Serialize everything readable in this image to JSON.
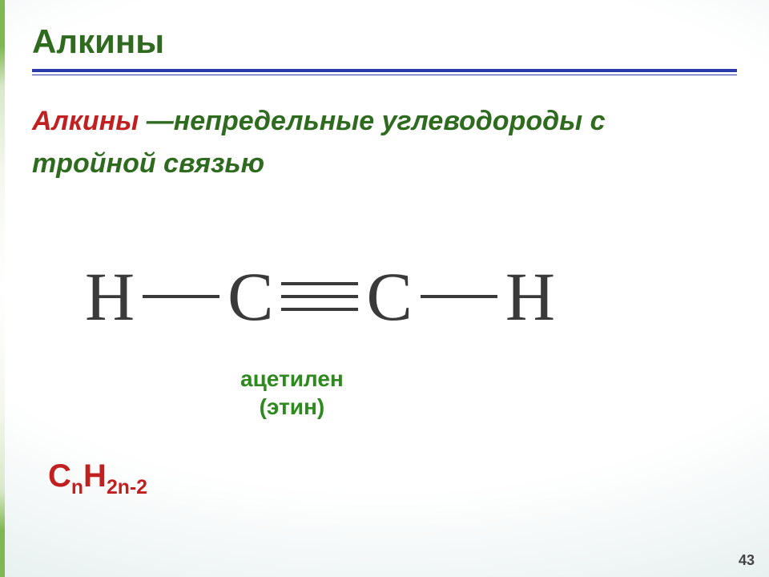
{
  "title": {
    "text": "Алкины",
    "color": "#2e6b1f",
    "fontsize": 42
  },
  "underline": {
    "thick_color": "#2a3aa8",
    "thin_color": "#2a3aa8"
  },
  "definition": {
    "lead": "Алкины",
    "lead_color": "#c02020",
    "dash": " —",
    "rest": "непредельные углеводороды с тройной связью",
    "body_color": "#2e6b1f",
    "fontsize": 34
  },
  "molecule": {
    "atoms": [
      "H",
      "C",
      "C",
      "H"
    ],
    "bonds": [
      "single",
      "triple",
      "single"
    ],
    "color": "#3a3a3a",
    "fontsize": 86
  },
  "caption": {
    "line1": "ацетилен",
    "line2": "(этин)",
    "color": "#2e8a1f",
    "fontsize": 28
  },
  "formula": {
    "parts": [
      "C",
      "n",
      "H",
      "2n-2"
    ],
    "pattern": [
      "base",
      "sub",
      "base",
      "sub"
    ],
    "color": "#c02020",
    "fontsize": 40
  },
  "page_number": "43",
  "background": {
    "center": "#ffffff",
    "edge": "#a8cdd5",
    "accent_bar": "#7fb850"
  }
}
